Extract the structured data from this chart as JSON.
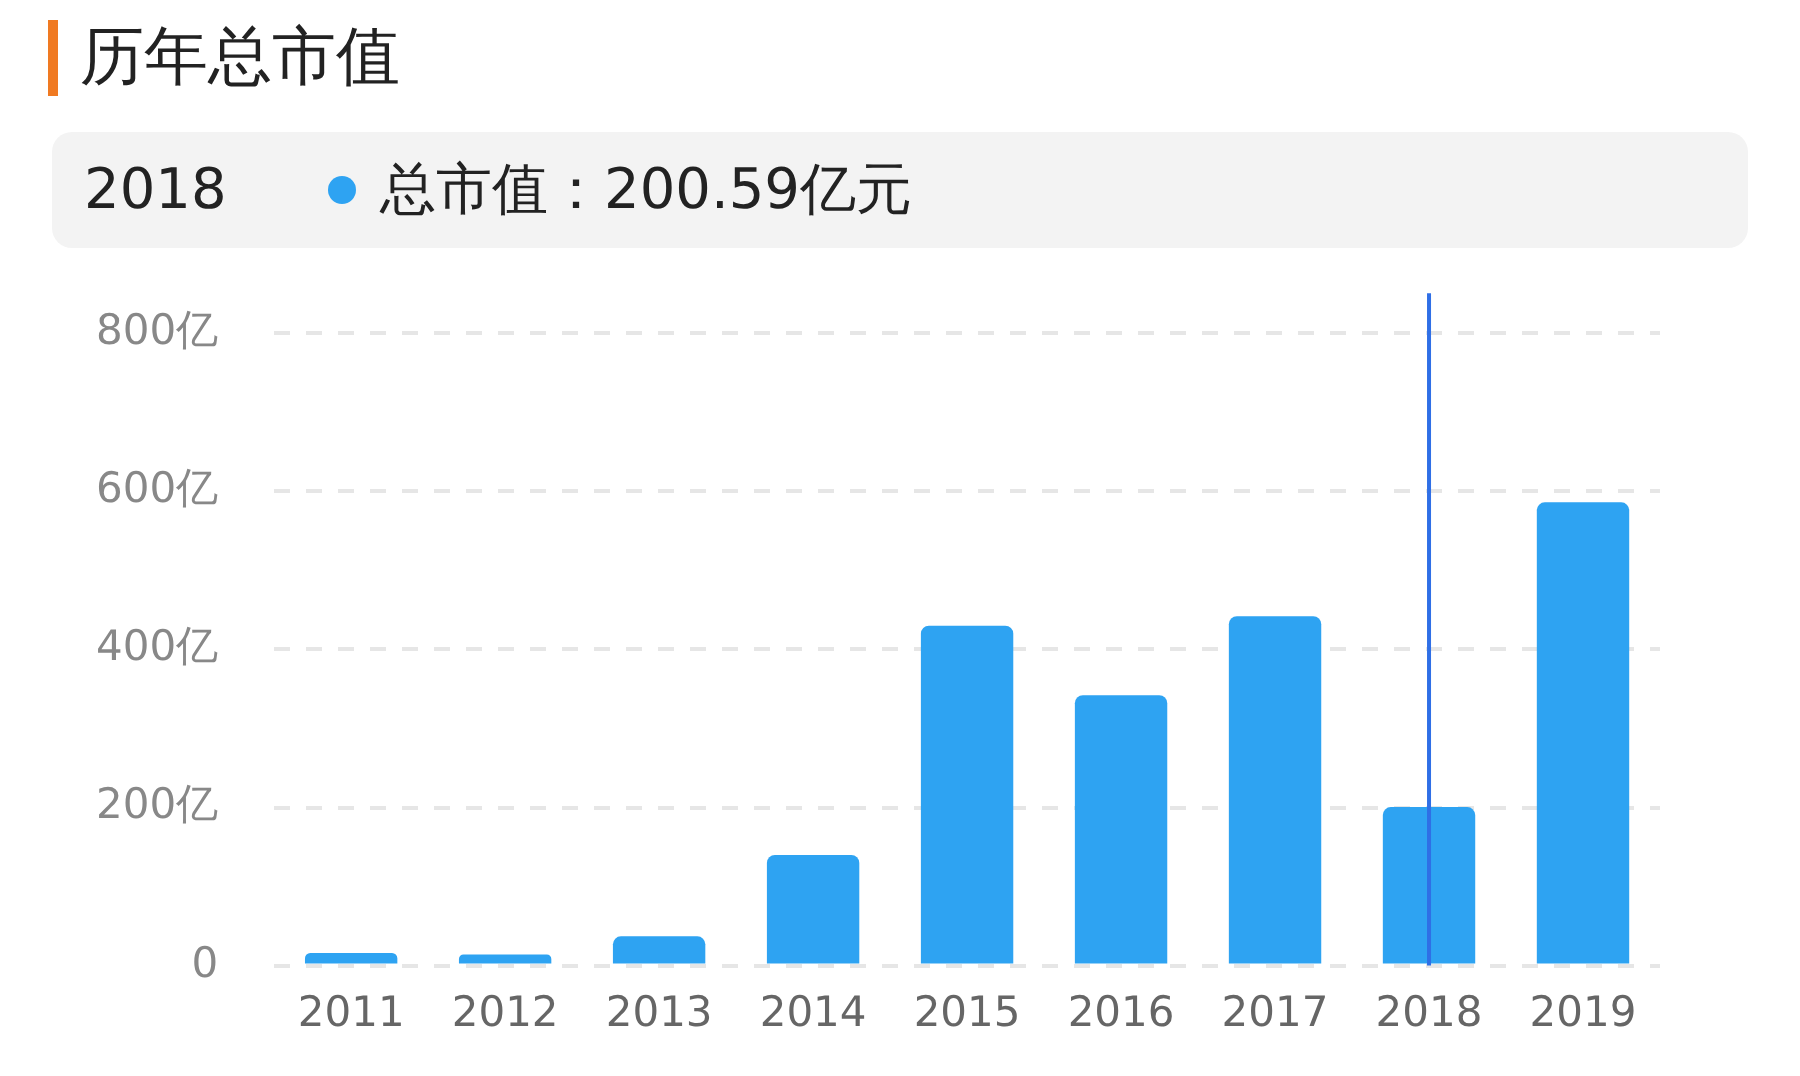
{
  "chart_data": {
    "type": "bar",
    "title": "历年总市值",
    "categories": [
      "2011",
      "2012",
      "2013",
      "2014",
      "2015",
      "2016",
      "2017",
      "2018",
      "2019"
    ],
    "values": [
      16,
      14,
      37,
      140,
      430,
      342,
      442,
      200.59,
      586
    ],
    "color": "#2ea3f2",
    "ylim": [
      0,
      800
    ],
    "yticks": [
      0,
      {
        "value": 200,
        "label": "200亿"
      },
      {
        "value": 400,
        "label": "400亿"
      },
      {
        "value": 600,
        "label": "600亿"
      },
      {
        "value": 800,
        "label": "800亿"
      }
    ],
    "grid": "y",
    "ref_lines": [
      {
        "axis": "x",
        "value": "2018",
        "color": "#2f6fe6"
      }
    ],
    "annotations": [
      "2018",
      "总市值：200.59亿元"
    ]
  }
}
